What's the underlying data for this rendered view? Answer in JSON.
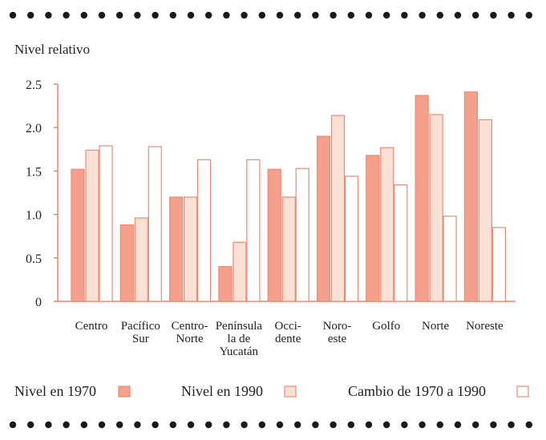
{
  "chart_data": {
    "type": "bar",
    "ylabel": "Nivel relativo",
    "ylim": [
      0,
      2.5
    ],
    "yticks": [
      "0",
      "0.5",
      "1.0",
      "1.5",
      "2.0",
      "2.5"
    ],
    "categories": [
      [
        "Centro"
      ],
      [
        "Pacífico",
        "Sur"
      ],
      [
        "Centro-",
        "Norte"
      ],
      [
        "Península",
        "la de",
        "Yucatán"
      ],
      [
        "Occi-",
        "dente"
      ],
      [
        "Noro-",
        "este"
      ],
      [
        "Golfo"
      ],
      [
        "Norte"
      ],
      [
        "Noreste"
      ]
    ],
    "series": [
      {
        "name": "Nivel en 1970",
        "values": [
          1.52,
          0.88,
          1.2,
          0.4,
          1.52,
          1.9,
          1.68,
          2.37,
          2.41
        ]
      },
      {
        "name": "Nivel en 1990",
        "values": [
          1.74,
          0.96,
          1.2,
          0.68,
          1.2,
          2.14,
          1.77,
          2.15,
          2.09
        ]
      },
      {
        "name": "Cambio de 1970 a 1990",
        "values": [
          1.79,
          1.78,
          1.63,
          1.63,
          1.53,
          1.44,
          1.34,
          0.98,
          0.85
        ]
      }
    ],
    "grid": false,
    "legend_position": "bottom"
  },
  "colors": {
    "axis": "#e8836a",
    "series": [
      {
        "fill": "#f4a08c",
        "stroke": "#ec8a72"
      },
      {
        "fill": "#fbe0d6",
        "stroke": "#ec8a72"
      },
      {
        "fill": "#ffffff",
        "stroke": "#ec8a72"
      }
    ],
    "dots": "#1a1a1a"
  }
}
